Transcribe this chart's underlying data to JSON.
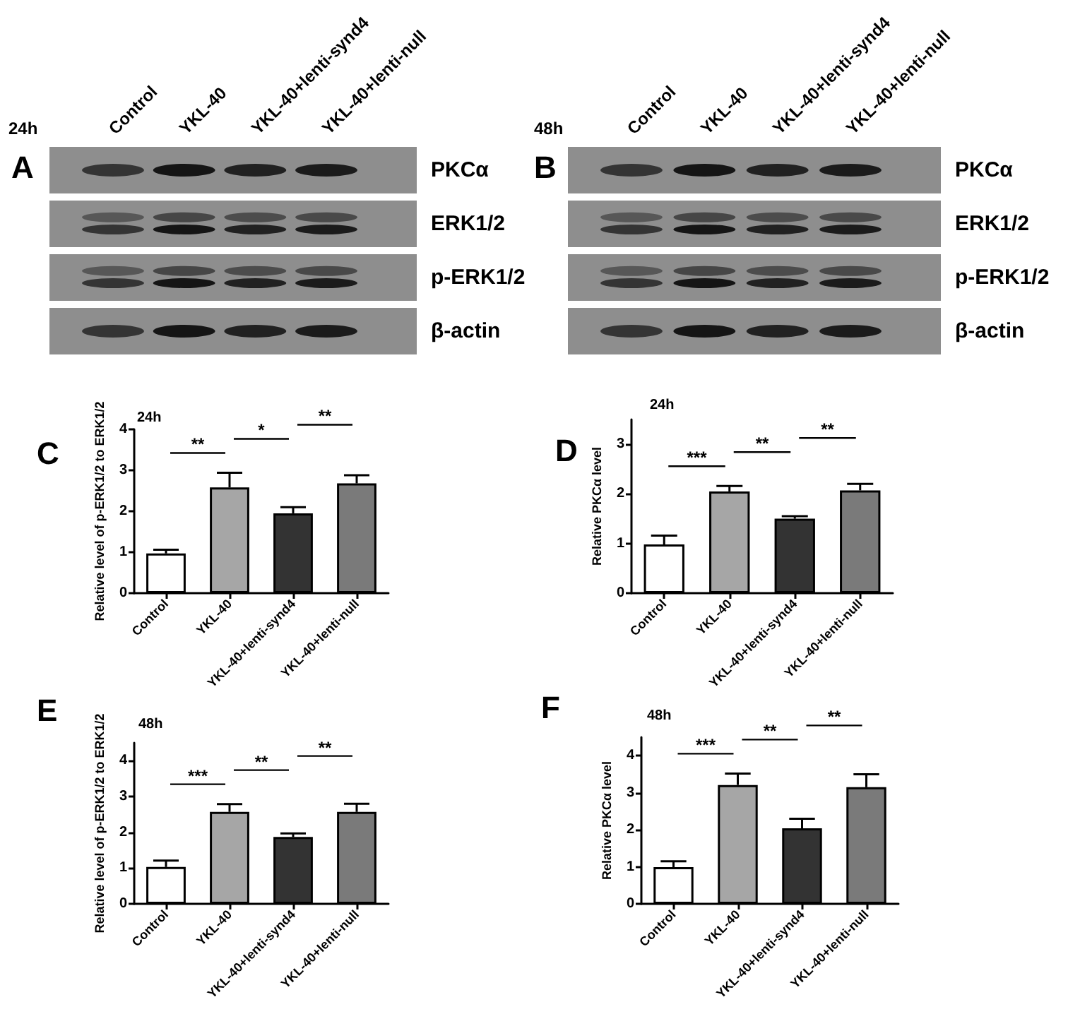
{
  "chart_data": [
    {
      "type": "other",
      "title": "A",
      "subtitle": "24h",
      "categories": [
        "Control",
        "YKL-40",
        "YKL-40+lenti-synd4",
        "YKL-40+lenti-null"
      ],
      "y_categories": [
        "PKCα",
        "ERK1/2",
        "p-ERK1/2",
        "β-actin"
      ]
    },
    {
      "type": "other",
      "title": "B",
      "subtitle": "48h",
      "categories": [
        "Control",
        "YKL-40",
        "YKL-40+lenti-synd4",
        "YKL-40+lenti-null"
      ],
      "y_categories": [
        "PKCα",
        "ERK1/2",
        "p-ERK1/2",
        "β-actin"
      ]
    },
    {
      "type": "bar",
      "title": "C",
      "subtitle": "24h",
      "ylabel": "Relative level of p-ERK1/2 to ERK1/2",
      "categories": [
        "Control",
        "YKL-40",
        "YKL-40+lenti-synd4",
        "YKL-40+lenti-null"
      ],
      "values": [
        0.97,
        2.58,
        1.95,
        2.68
      ],
      "colors": [
        "#ffffff",
        "#a6a6a6",
        "#333333",
        "#7a7a7a"
      ],
      "errors": [
        [
          0.97,
          1.06
        ],
        [
          2.58,
          2.94
        ],
        [
          1.95,
          2.1
        ],
        [
          2.68,
          2.88
        ]
      ],
      "ylim": [
        0,
        4
      ],
      "yticks": [
        0,
        1,
        2,
        3,
        4
      ],
      "annotations": [
        "**",
        "*",
        "**"
      ]
    },
    {
      "type": "bar",
      "title": "D",
      "subtitle": "24h",
      "ylabel": "Relative PKCα level",
      "categories": [
        "Control",
        "YKL-40",
        "YKL-40+lenti-synd4",
        "YKL-40+lenti-null"
      ],
      "values": [
        0.98,
        2.05,
        1.5,
        2.07
      ],
      "colors": [
        "#ffffff",
        "#a6a6a6",
        "#333333",
        "#7a7a7a"
      ],
      "errors": [
        [
          0.98,
          1.16
        ],
        [
          2.05,
          2.16
        ],
        [
          1.5,
          1.55
        ],
        [
          2.07,
          2.2
        ]
      ],
      "ylim": [
        0,
        3.5
      ],
      "yticks": [
        0,
        1,
        2,
        3
      ],
      "annotations": [
        "***",
        "**",
        "**"
      ]
    },
    {
      "type": "bar",
      "title": "E",
      "subtitle": "48h",
      "ylabel": "Relative level of p-ERK1/2 to ERK1/2",
      "categories": [
        "Control",
        "YKL-40",
        "YKL-40+lenti-synd4",
        "YKL-40+lenti-null"
      ],
      "values": [
        1.03,
        2.57,
        1.87,
        2.57
      ],
      "colors": [
        "#ffffff",
        "#a6a6a6",
        "#333333",
        "#7a7a7a"
      ],
      "errors": [
        [
          1.03,
          1.21
        ],
        [
          2.57,
          2.79
        ],
        [
          1.87,
          1.97
        ],
        [
          2.57,
          2.8
        ]
      ],
      "ylim": [
        0,
        4.5
      ],
      "yticks": [
        0,
        1,
        2,
        3,
        4
      ],
      "annotations": [
        "***",
        "**",
        "**"
      ]
    },
    {
      "type": "bar",
      "title": "F",
      "subtitle": "48h",
      "ylabel": "Relative PKCα level",
      "categories": [
        "Control",
        "YKL-40",
        "YKL-40+lenti-synd4",
        "YKL-40+lenti-null"
      ],
      "values": [
        0.99,
        3.21,
        2.04,
        3.15
      ],
      "colors": [
        "#ffffff",
        "#a6a6a6",
        "#333333",
        "#7a7a7a"
      ],
      "errors": [
        [
          0.99,
          1.15
        ],
        [
          3.21,
          3.52
        ],
        [
          2.04,
          2.3
        ],
        [
          3.15,
          3.5
        ]
      ],
      "ylim": [
        0,
        4.5
      ],
      "yticks": [
        0,
        1,
        2,
        3,
        4
      ],
      "annotations": [
        "***",
        "**",
        "**"
      ]
    }
  ]
}
